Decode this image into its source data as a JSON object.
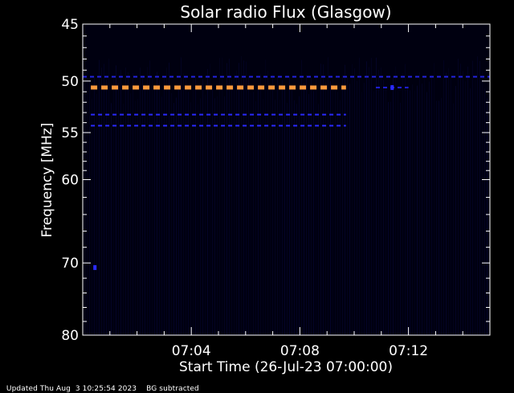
{
  "chart_data": {
    "type": "heatmap",
    "title": "Solar radio Flux (Glasgow)",
    "xlabel": "Start Time (26-Jul-23 07:00:00)",
    "ylabel": "Frequency [MHz]",
    "xlim": [
      0,
      15
    ],
    "ylim": [
      45,
      80
    ],
    "y_scale": "log",
    "x_ticks": [
      {
        "value": 4,
        "label": "07:04"
      },
      {
        "value": 8,
        "label": "07:08"
      },
      {
        "value": 12,
        "label": "07:12"
      }
    ],
    "y_ticks": [
      {
        "value": 45,
        "label": "45"
      },
      {
        "value": 50,
        "label": "50"
      },
      {
        "value": 55,
        "label": "55"
      },
      {
        "value": 60,
        "label": "60"
      },
      {
        "value": 70,
        "label": "70"
      },
      {
        "value": 80,
        "label": "80"
      }
    ],
    "background_color": "#000010",
    "series": [
      {
        "frequency": 50.6,
        "t_start": 0.3,
        "t_end": 9.7,
        "intensity": "high",
        "color": "#ff9a3c"
      },
      {
        "frequency": 53.2,
        "t_start": 0.3,
        "t_end": 9.7,
        "intensity": "low",
        "color": "#2a2aff"
      },
      {
        "frequency": 54.3,
        "t_start": 0.3,
        "t_end": 9.7,
        "intensity": "low",
        "color": "#2a2aff"
      },
      {
        "frequency": 50.6,
        "t_start": 10.8,
        "t_end": 12.0,
        "intensity": "low",
        "color": "#2020d8"
      },
      {
        "frequency": 49.6,
        "t_start": 0.0,
        "t_end": 15.0,
        "intensity": "low",
        "color": "#2323e0"
      }
    ],
    "spots": [
      {
        "time": 0.45,
        "frequency": 70.6,
        "color": "#2a2aff"
      },
      {
        "time": 11.4,
        "frequency": 50.6,
        "color": "#2a2aff"
      }
    ]
  },
  "footer": {
    "updated": "Updated Thu Aug  3 10:25:54 2023",
    "note": "BG subtracted"
  }
}
